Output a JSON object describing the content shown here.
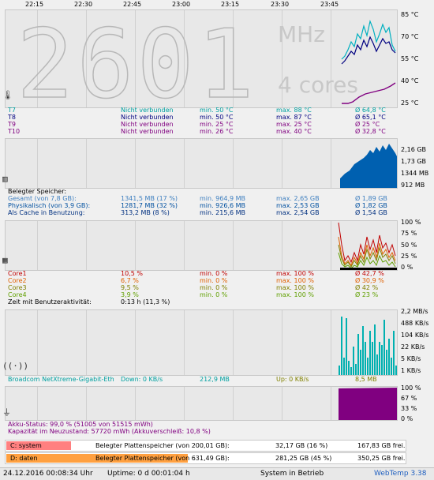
{
  "time_axis": [
    "22:15",
    "22:30",
    "22:45",
    "23:00",
    "23:15",
    "23:30",
    "23:45"
  ],
  "cpu_panel": {
    "big_number": "2601",
    "unit": "MHz",
    "cores_label": "4 cores",
    "y_ticks": [
      "85 °C",
      "70 °C",
      "55 °C",
      "40 °C",
      "25 °C"
    ],
    "icon": "thermometer-icon",
    "rows": [
      {
        "name": "T7",
        "status": "Nicht verbunden",
        "min": "min. 50 °C",
        "max": "max. 88 °C",
        "avg": "Ø 64,8 °C",
        "color": "#00a0a0"
      },
      {
        "name": "T8",
        "status": "Nicht verbunden",
        "min": "min. 50 °C",
        "max": "max. 87 °C",
        "avg": "Ø 65,1 °C",
        "color": "#000080"
      },
      {
        "name": "T9",
        "status": "Nicht verbunden",
        "min": "min. 25 °C",
        "max": "max. 25 °C",
        "avg": "Ø 25 °C",
        "color": "#800080"
      },
      {
        "name": "T10",
        "status": "Nicht verbunden",
        "min": "min. 26 °C",
        "max": "max. 40 °C",
        "avg": "Ø 32,8 °C",
        "color": "#800080"
      }
    ]
  },
  "mem_panel": {
    "y_ticks": [
      "2,16 GB",
      "1,73 GB",
      "1344 MB",
      "912 MB"
    ],
    "icon": "memory-chip-icon",
    "heading": "Belegter Speicher:",
    "rows": [
      {
        "name": "Gesamt (von 7,8 GB):",
        "value": "1341,5 MB (17 %)",
        "min": "min. 964,9 MB",
        "max": "max. 2,65 GB",
        "avg": "Ø 1,89 GB",
        "color": "#4080c0"
      },
      {
        "name": "Physikalisch (von 3,9 GB):",
        "value": "1281,7 MB (32 %)",
        "min": "min. 926,6 MB",
        "max": "max. 2,53 GB",
        "avg": "Ø 1,82 GB",
        "color": "#0050a0"
      },
      {
        "name": "Als Cache in Benutzung:",
        "value": "313,2 MB (8 %)",
        "min": "min. 215,6 MB",
        "max": "max. 2,54 GB",
        "avg": "Ø 1,54 GB",
        "color": "#003080"
      }
    ]
  },
  "core_panel": {
    "y_ticks": [
      "100 %",
      "75 %",
      "50 %",
      "25 %",
      "0 %"
    ],
    "icon": "cpu-chip-icon",
    "rows": [
      {
        "name": "Core1",
        "value": "10,5 %",
        "min": "min. 0 %",
        "max": "max. 100 %",
        "avg": "Ø 42,7 %",
        "color": "#c00000"
      },
      {
        "name": "Core2",
        "value": "6,7 %",
        "min": "min. 0 %",
        "max": "max. 100 %",
        "avg": "Ø 30,9 %",
        "color": "#e06000"
      },
      {
        "name": "Core3",
        "value": "9,5 %",
        "min": "min. 0 %",
        "max": "max. 100 %",
        "avg": "Ø 42 %",
        "color": "#808000"
      },
      {
        "name": "Core4",
        "value": "3,9 %",
        "min": "min. 0 %",
        "max": "max. 100 %",
        "avg": "Ø 23 %",
        "color": "#60a000"
      }
    ],
    "activity_label": "Zeit mit Benutzeraktivität:",
    "activity_value": "0:13 h (11,3 %)"
  },
  "net_panel": {
    "y_ticks": [
      "2,2 MB/s",
      "488 KB/s",
      "104 KB/s",
      "22 KB/s",
      "5 KB/s",
      "1 KB/s"
    ],
    "icon": "network-antenna-icon",
    "adapter": "Broadcom NetXtreme-Gigabit-Eth",
    "down": "Down: 0 KB/s",
    "down_total": "212,9 MB",
    "up": "Up: 0 KB/s",
    "up_total": "8,5 MB",
    "color": "#00a0a0"
  },
  "battery_panel": {
    "y_ticks": [
      "100 %",
      "67 %",
      "33 %",
      "0 %"
    ],
    "icon": "battery-plug-icon",
    "status": "Akku-Status: 99,0 % (51005 von 51515 mWh)",
    "capacity": "Kapazität im Neuzustand: 57720 mWh (Akkuverschleiß: 10,8 %)",
    "color": "#800080"
  },
  "disks": [
    {
      "name": "C: system",
      "label": "Belegter Plattenspeicher (von 200,01 GB):",
      "used": "32,17 GB (16 %)",
      "free": "167,83 GB frei.",
      "color": "#ff8080",
      "fill": 0.16
    },
    {
      "name": "D: daten",
      "label": "Belegter Plattenspeicher (von 631,49 GB):",
      "used": "281,25 GB (45 %)",
      "free": "350,25 GB frei.",
      "color": "#ffa040",
      "fill": 0.45
    }
  ],
  "footer": {
    "datetime": "24.12.2016 00:08:34 Uhr",
    "uptime": "Uptime: 0 d 00:01:04 h",
    "status": "System in Betrieb",
    "app": "WebTemp 3.38"
  }
}
